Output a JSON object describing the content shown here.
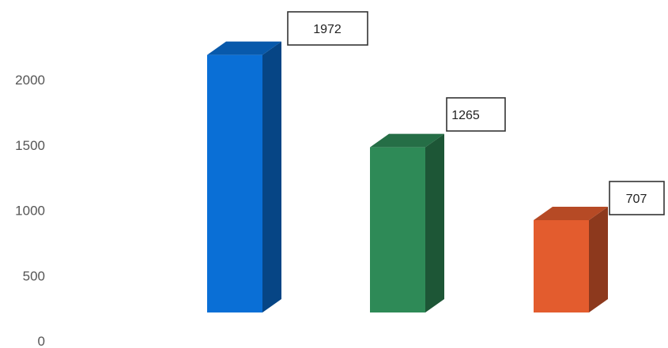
{
  "chart_data": {
    "type": "bar",
    "style": "3d",
    "categories": [
      "",
      "",
      ""
    ],
    "values": [
      1972,
      1265,
      707
    ],
    "data_labels": [
      "1972",
      "1265",
      "707"
    ],
    "colors": [
      "#0a6fd6",
      "#2e8a57",
      "#e35c2e"
    ],
    "yticks": [
      0,
      500,
      1000,
      1500,
      2000
    ],
    "ytick_labels": [
      "0",
      "500",
      "1000",
      "1500",
      "2000"
    ],
    "ylim": [
      0,
      2000
    ],
    "grid": false,
    "legend": "none",
    "title": "",
    "xlabel": "",
    "ylabel": ""
  }
}
